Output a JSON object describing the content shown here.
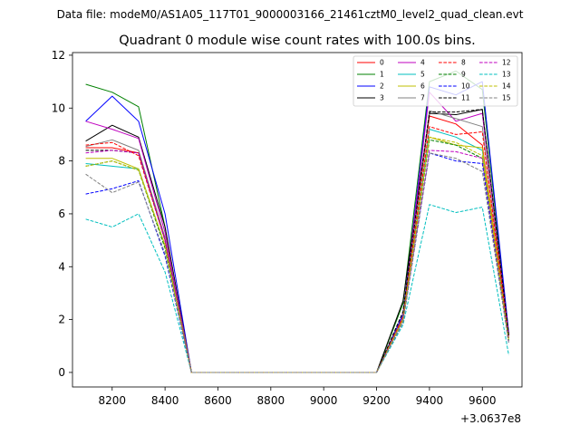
{
  "chart_data": {
    "type": "line",
    "suptitle": "Data file: modeM0/AS1A05_117T01_9000003166_21461cztM0_level2_quad_clean.evt",
    "title": "Quadrant 0 module wise count rates with 100.0s bins.",
    "xlabel": "",
    "ylabel": "",
    "x_offset_label": "+3.0637e8",
    "xlim": [
      8050,
      9750
    ],
    "ylim": [
      -0.55,
      12.1
    ],
    "xticks": [
      8200,
      8400,
      8600,
      8800,
      9000,
      9200,
      9400,
      9600
    ],
    "yticks": [
      0,
      2,
      4,
      6,
      8,
      10,
      12
    ],
    "x": [
      8100,
      8200,
      8300,
      8400,
      8500,
      8600,
      8700,
      8800,
      8900,
      9000,
      9100,
      9200,
      9300,
      9400,
      9500,
      9600,
      9700
    ],
    "legend": {
      "location": "upper right",
      "columns": 4
    },
    "series": [
      {
        "name": "0",
        "color": "#ff0000",
        "dash": "solid",
        "values": [
          8.5,
          8.5,
          8.3,
          5.0,
          0,
          0,
          0,
          0,
          0,
          0,
          0,
          0,
          2.2,
          9.7,
          9.4,
          8.6,
          1.3
        ]
      },
      {
        "name": "1",
        "color": "#008000",
        "dash": "solid",
        "values": [
          10.9,
          10.6,
          10.05,
          5.5,
          0,
          0,
          0,
          0,
          0,
          0,
          0,
          0,
          2.6,
          11.0,
          11.4,
          10.7,
          1.4
        ]
      },
      {
        "name": "2",
        "color": "#0000ff",
        "dash": "solid",
        "values": [
          9.5,
          10.45,
          9.5,
          6.0,
          0,
          0,
          0,
          0,
          0,
          0,
          0,
          0,
          2.2,
          10.8,
          10.5,
          11.0,
          1.5
        ]
      },
      {
        "name": "3",
        "color": "#000000",
        "dash": "solid",
        "values": [
          8.75,
          9.35,
          8.9,
          5.5,
          0,
          0,
          0,
          0,
          0,
          0,
          0,
          0,
          2.7,
          9.8,
          9.75,
          9.95,
          1.4
        ]
      },
      {
        "name": "4",
        "color": "#bf00bf",
        "dash": "solid",
        "values": [
          9.5,
          9.2,
          8.85,
          5.3,
          0,
          0,
          0,
          0,
          0,
          0,
          0,
          0,
          2.1,
          10.6,
          9.5,
          9.8,
          1.4
        ]
      },
      {
        "name": "5",
        "color": "#00bfbf",
        "dash": "solid",
        "values": [
          7.9,
          7.8,
          7.7,
          4.8,
          0,
          0,
          0,
          0,
          0,
          0,
          0,
          0,
          2.0,
          9.2,
          8.9,
          8.4,
          1.2
        ]
      },
      {
        "name": "6",
        "color": "#bfbf00",
        "dash": "solid",
        "values": [
          8.1,
          8.1,
          7.7,
          4.8,
          0,
          0,
          0,
          0,
          0,
          0,
          0,
          0,
          2.0,
          8.9,
          8.6,
          8.5,
          1.2
        ]
      },
      {
        "name": "7",
        "color": "#808080",
        "dash": "solid",
        "values": [
          8.55,
          8.8,
          8.4,
          5.1,
          0,
          0,
          0,
          0,
          0,
          0,
          0,
          0,
          2.1,
          9.9,
          9.6,
          9.3,
          1.3
        ]
      },
      {
        "name": "8",
        "color": "#ff0000",
        "dash": "dashed",
        "values": [
          8.6,
          8.7,
          8.2,
          5.0,
          0,
          0,
          0,
          0,
          0,
          0,
          0,
          0,
          2.1,
          9.3,
          9.0,
          9.1,
          1.3
        ]
      },
      {
        "name": "9",
        "color": "#008000",
        "dash": "dashed",
        "values": [
          7.8,
          8.0,
          7.65,
          4.7,
          0,
          0,
          0,
          0,
          0,
          0,
          0,
          0,
          2.0,
          8.8,
          8.6,
          8.1,
          1.2
        ]
      },
      {
        "name": "10",
        "color": "#0000ff",
        "dash": "dashed",
        "values": [
          6.75,
          6.95,
          7.25,
          4.4,
          0,
          0,
          0,
          0,
          0,
          0,
          0,
          0,
          1.9,
          8.3,
          8.0,
          7.9,
          1.1
        ]
      },
      {
        "name": "11",
        "color": "#000000",
        "dash": "dashed",
        "values": [
          8.4,
          8.4,
          8.3,
          5.0,
          0,
          0,
          0,
          0,
          0,
          0,
          0,
          0,
          2.3,
          9.85,
          9.85,
          9.95,
          1.4
        ]
      },
      {
        "name": "12",
        "color": "#bf00bf",
        "dash": "dashed",
        "values": [
          8.3,
          8.4,
          8.3,
          5.0,
          0,
          0,
          0,
          0,
          0,
          0,
          0,
          0,
          2.0,
          8.4,
          8.35,
          8.1,
          1.2
        ]
      },
      {
        "name": "13",
        "color": "#00bfbf",
        "dash": "dashed",
        "values": [
          5.8,
          5.5,
          6.0,
          3.8,
          0,
          0,
          0,
          0,
          0,
          0,
          0,
          0,
          1.8,
          6.35,
          6.05,
          6.25,
          0.65
        ]
      },
      {
        "name": "14",
        "color": "#bfbf00",
        "dash": "dashed",
        "values": [
          7.8,
          8.0,
          7.65,
          4.8,
          0,
          0,
          0,
          0,
          0,
          0,
          0,
          0,
          2.0,
          8.9,
          8.7,
          8.2,
          1.2
        ]
      },
      {
        "name": "15",
        "color": "#808080",
        "dash": "dashed",
        "values": [
          7.5,
          6.8,
          7.2,
          4.5,
          0,
          0,
          0,
          0,
          0,
          0,
          0,
          0,
          1.9,
          8.3,
          8.1,
          7.6,
          1.1
        ]
      }
    ]
  }
}
